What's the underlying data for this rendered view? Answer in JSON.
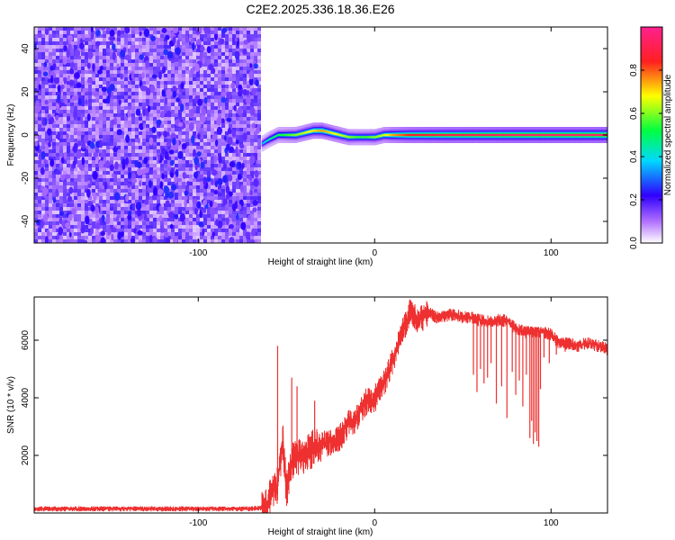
{
  "figure_title": "C2E2.2025.336.18.36.E26",
  "chart_data": [
    {
      "type": "heatmap",
      "title": "C2E2.2025.336.18.36.E26",
      "xlabel": "Height of straight line (km)",
      "ylabel": "Frequency (Hz)",
      "xlim": [
        -193,
        132
      ],
      "ylim": [
        -50,
        50
      ],
      "x_ticks": [
        -100,
        0,
        100
      ],
      "x_tick_labels": [
        "-100",
        "0",
        "100"
      ],
      "y_ticks": [
        -40,
        -20,
        0,
        20,
        40
      ],
      "y_tick_labels": [
        "-40",
        "-20",
        "0",
        "20",
        "40"
      ],
      "colorbar": {
        "label": "Normalized spectral amplitude",
        "range": [
          0,
          1
        ],
        "ticks": [
          0.0,
          0.2,
          0.4,
          0.6,
          0.8
        ],
        "tick_labels": [
          "0.0",
          "0.2",
          "0.4",
          "0.6",
          "0.8"
        ],
        "colors": [
          "#ffffff",
          "#b070ff",
          "#3000ff",
          "#00d8ff",
          "#00ff40",
          "#ffff00",
          "#ff2020",
          "#ff2090"
        ]
      },
      "noise_region": {
        "x_range": [
          -193,
          -64
        ],
        "y_range": [
          -50,
          50
        ],
        "typical_amplitude": 0.15
      },
      "signal_trace": {
        "x": [
          -64,
          -60,
          -55,
          -50,
          -45,
          -40,
          -35,
          -30,
          -25,
          -20,
          -15,
          -10,
          -5,
          0,
          5,
          10,
          20,
          40,
          60,
          80,
          100,
          132
        ],
        "frequency": [
          -4,
          -2,
          0,
          0,
          0,
          1,
          2,
          2,
          1,
          0,
          -1,
          -1,
          -1,
          -1,
          0,
          0,
          0,
          0,
          0,
          0,
          0,
          0
        ],
        "amplitude": [
          0.35,
          0.45,
          0.5,
          0.55,
          0.6,
          0.65,
          0.7,
          0.75,
          0.7,
          0.65,
          0.6,
          0.55,
          0.55,
          0.6,
          0.65,
          0.75,
          0.85,
          0.9,
          0.92,
          0.95,
          0.95,
          0.95
        ]
      }
    },
    {
      "type": "line",
      "title": "",
      "xlabel": "Height of straight line (km)",
      "ylabel": "SNR (10 * v/v)",
      "xlim": [
        -193,
        132
      ],
      "ylim": [
        0,
        7500
      ],
      "x_ticks": [
        -100,
        0,
        100
      ],
      "x_tick_labels": [
        "-100",
        "0",
        "100"
      ],
      "y_ticks": [
        2000,
        4000,
        6000
      ],
      "y_tick_labels": [
        "2000",
        "4000",
        "6000"
      ],
      "series": [
        {
          "name": "SNR",
          "color": "#ee3030",
          "x": [
            -193,
            -150,
            -100,
            -70,
            -62,
            -58,
            -55,
            -52,
            -50,
            -48,
            -45,
            -40,
            -35,
            -30,
            -25,
            -20,
            -15,
            -10,
            -5,
            0,
            5,
            10,
            15,
            20,
            25,
            30,
            35,
            40,
            45,
            50,
            55,
            60,
            65,
            70,
            75,
            80,
            85,
            90,
            95,
            100,
            105,
            110,
            115,
            120,
            125,
            132
          ],
          "values": [
            150,
            150,
            150,
            150,
            200,
            700,
            1000,
            2500,
            800,
            1600,
            2000,
            2000,
            2300,
            2400,
            2500,
            2600,
            3100,
            3300,
            3900,
            4000,
            4500,
            5300,
            6200,
            7000,
            6700,
            7000,
            6800,
            6850,
            6900,
            6800,
            6800,
            6700,
            6650,
            6700,
            6700,
            6400,
            6300,
            6300,
            6300,
            6200,
            5900,
            5900,
            5800,
            5900,
            5850,
            5700
          ]
        }
      ],
      "dips": [
        {
          "x": 56,
          "min": 4800
        },
        {
          "x": 58,
          "min": 4200
        },
        {
          "x": 60,
          "min": 5000
        },
        {
          "x": 62,
          "min": 4500
        },
        {
          "x": 64,
          "min": 4700
        },
        {
          "x": 66,
          "min": 5200
        },
        {
          "x": 69,
          "min": 3800
        },
        {
          "x": 72,
          "min": 4400
        },
        {
          "x": 75,
          "min": 3300
        },
        {
          "x": 78,
          "min": 4900
        },
        {
          "x": 80,
          "min": 4100
        },
        {
          "x": 82,
          "min": 4600
        },
        {
          "x": 84,
          "min": 3700
        },
        {
          "x": 86,
          "min": 4800
        },
        {
          "x": 88,
          "min": 2600
        },
        {
          "x": 89,
          "min": 3200
        },
        {
          "x": 90,
          "min": 2400
        },
        {
          "x": 91,
          "min": 2800
        },
        {
          "x": 92,
          "min": 2500
        },
        {
          "x": 93,
          "min": 2300
        },
        {
          "x": 94,
          "min": 4300
        },
        {
          "x": 96,
          "min": 5400
        },
        {
          "x": 99,
          "min": 5200
        },
        {
          "x": 103,
          "min": 5500
        },
        {
          "x": 108,
          "min": 5600
        }
      ]
    }
  ]
}
